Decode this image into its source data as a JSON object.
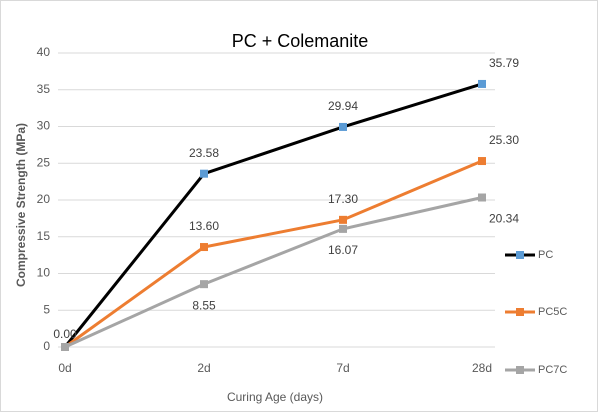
{
  "chart_data": {
    "type": "line",
    "title": "PC + Colemanite",
    "x_label": "Curing Age (days)",
    "y_label": "Compressive Strength (MPa)",
    "categories": [
      "0d",
      "2d",
      "7d",
      "28d"
    ],
    "series": [
      {
        "name": "PC",
        "color": "#000000",
        "marker_color": "#5b9bd5",
        "values": [
          0,
          23.58,
          29.94,
          35.79
        ],
        "value_labels": [
          "0.00",
          "23.58",
          "29.94",
          "35.79"
        ]
      },
      {
        "name": "PC5C",
        "color": "#ed7d31",
        "marker_color": "#ed7d31",
        "values": [
          0,
          13.6,
          17.3,
          25.3
        ],
        "value_labels": [
          null,
          "13.60",
          "17.30",
          "25.30"
        ]
      },
      {
        "name": "PC7C",
        "color": "#a5a5a5",
        "marker_color": "#a5a5a5",
        "values": [
          0,
          8.55,
          16.07,
          20.34
        ],
        "value_labels": [
          null,
          "8.55",
          "16.07",
          "20.34"
        ]
      }
    ],
    "ylim": [
      0,
      40
    ],
    "yticks": [
      0,
      5,
      10,
      15,
      20,
      25,
      30,
      35,
      40
    ],
    "grid": true,
    "legend": "right"
  }
}
